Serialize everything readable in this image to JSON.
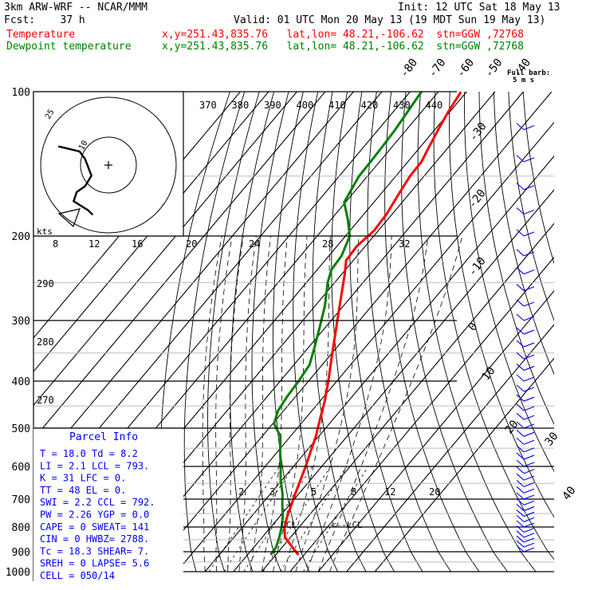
{
  "header": {
    "model": "3km ARW-WRF -- NCAR/MMM",
    "forecast": "Fcst:    37 h",
    "init": "Init: 12 UTC Sat 18 May 13",
    "valid": "Valid: 01 UTC Mon 20 May 13 (19 MDT Sun 19 May 13)",
    "temp_label": "Temperature",
    "temp_loc": "x,y=251.43,835.76   lat,lon= 48.21,-106.62  stn=GGW ,72768",
    "dew_label": "Dewpoint temperature",
    "dew_loc": "x,y=251.43,835.76   lat,lon= 48.21,-106.62  stn=GGW ,72768"
  },
  "colors": {
    "temperature": "#ff0000",
    "dewpoint": "#008000",
    "wind": "#0000ff",
    "isotherm": "#000000",
    "parcel_text": "#0000ff"
  },
  "chart_data": {
    "type": "line",
    "chart_kind": "skew-T log-P sounding",
    "y_scale": "log pressure",
    "ylim": [
      1000,
      100
    ],
    "pressure_ticks": [
      "100",
      "200",
      "300",
      "400",
      "500",
      "600",
      "700",
      "800",
      "900",
      "1000"
    ],
    "isotherm_labels_top": [
      "-80",
      "-70",
      "-60",
      "-50",
      "-40"
    ],
    "isotherm_labels_right": [
      "-30",
      "-20",
      "-10",
      "0",
      "10",
      "20",
      "30",
      "40"
    ],
    "theta_labels": [
      "370",
      "380",
      "390",
      "400",
      "410",
      "420",
      "430",
      "440"
    ],
    "theta_labels_left": [
      "290",
      "280",
      "270"
    ],
    "mixing_ratio_labels": [
      "2",
      "3",
      "5",
      "8",
      "12",
      "20"
    ],
    "ccl_label": "CCL",
    "lcl_label": "<--LCL",
    "wind_barb_header": "Full barb:",
    "wind_barb_unit": "5 m s",
    "series": [
      {
        "name": "Temperature",
        "points": [
          [
            915,
            18.0
          ],
          [
            880,
            13.5
          ],
          [
            840,
            8.0
          ],
          [
            800,
            4.8
          ],
          [
            760,
            2.6
          ],
          [
            720,
            0.7
          ],
          [
            680,
            -1.4
          ],
          [
            640,
            -3.5
          ],
          [
            600,
            -5.7
          ],
          [
            560,
            -8.3
          ],
          [
            520,
            -11.0
          ],
          [
            480,
            -14.6
          ],
          [
            440,
            -18.3
          ],
          [
            400,
            -23.0
          ],
          [
            360,
            -28.5
          ],
          [
            320,
            -34.5
          ],
          [
            290,
            -39.5
          ],
          [
            260,
            -45.0
          ],
          [
            240,
            -49.0
          ],
          [
            225,
            -52.5
          ],
          [
            210,
            -53.0
          ],
          [
            195,
            -51.5
          ],
          [
            180,
            -52.0
          ],
          [
            165,
            -53.5
          ],
          [
            150,
            -55.0
          ],
          [
            140,
            -55.2
          ],
          [
            130,
            -57.0
          ],
          [
            120,
            -58.8
          ],
          [
            110,
            -60.6
          ],
          [
            100,
            -62.0
          ]
        ]
      },
      {
        "name": "Dewpoint temperature",
        "points": [
          [
            915,
            8.2
          ],
          [
            880,
            7.8
          ],
          [
            840,
            6.0
          ],
          [
            800,
            3.8
          ],
          [
            760,
            1.0
          ],
          [
            720,
            -2.5
          ],
          [
            680,
            -6.0
          ],
          [
            640,
            -10.5
          ],
          [
            600,
            -14.5
          ],
          [
            560,
            -19.0
          ],
          [
            520,
            -23.5
          ],
          [
            490,
            -29.5
          ],
          [
            460,
            -32.0
          ],
          [
            430,
            -33.0
          ],
          [
            400,
            -33.5
          ],
          [
            370,
            -34.5
          ],
          [
            340,
            -38.0
          ],
          [
            310,
            -42.0
          ],
          [
            280,
            -46.5
          ],
          [
            250,
            -52.5
          ],
          [
            235,
            -55.0
          ],
          [
            220,
            -55.5
          ],
          [
            200,
            -58.5
          ],
          [
            185,
            -64.0
          ],
          [
            170,
            -70.5
          ],
          [
            150,
            -73.0
          ],
          [
            140,
            -73.2
          ],
          [
            130,
            -73.5
          ],
          [
            120,
            -74.0
          ],
          [
            100,
            -76.0
          ]
        ]
      }
    ],
    "hodograph": {
      "speed_labels": [
        "8",
        "12",
        "16",
        "20",
        "24",
        "28",
        "32"
      ],
      "units": "kts",
      "ring_labels": [
        "25",
        "10"
      ],
      "points": [
        [
          -0.08,
          0.78
        ],
        [
          0.42,
          0.95
        ],
        [
          0.55,
          1.2
        ],
        [
          0.7,
          1.75
        ],
        [
          0.55,
          2.1
        ],
        [
          0.35,
          2.3
        ],
        [
          0.28,
          2.6
        ],
        [
          0.62,
          2.9
        ],
        [
          0.73,
          3.05
        ]
      ]
    }
  },
  "parcel_info": {
    "title": "Parcel Info",
    "rows": [
      "T  =   18.0  Td =   8.2",
      "LI =    2.1  LCL =  793.",
      "K  =     31  LFC =    0.",
      "TT =     48  EL  =    0.",
      "SWI =   2.2  CCL =  792.",
      "PW =   2.26  YGP =   0.0",
      "CAPE =    0  SWEAT=  141",
      "CIN =     0  HWBZ= 2788.",
      "Tc =   18.3  SHEAR=   7.",
      "SREH =    0  LAPSE=  5.6",
      "CELL = 050/14"
    ]
  }
}
